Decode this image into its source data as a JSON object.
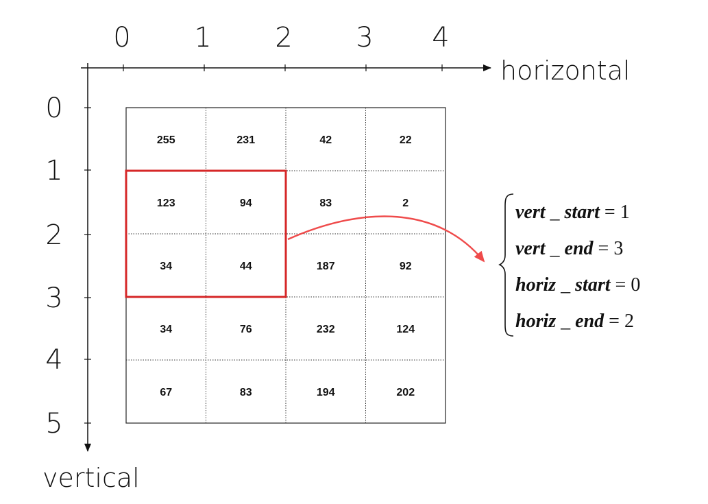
{
  "axes": {
    "horizontal_label": "horizontal",
    "vertical_label": "vertical",
    "horizontal_ticks": [
      "0",
      "1",
      "2",
      "3",
      "4"
    ],
    "vertical_ticks": [
      "0",
      "1",
      "2",
      "3",
      "4",
      "5"
    ]
  },
  "grid": {
    "rows": [
      [
        "255",
        "231",
        "42",
        "22"
      ],
      [
        "123",
        "94",
        "83",
        "2"
      ],
      [
        "34",
        "44",
        "187",
        "92"
      ],
      [
        "34",
        "76",
        "232",
        "124"
      ],
      [
        "67",
        "83",
        "194",
        "202"
      ]
    ]
  },
  "selection": {
    "vert_start": 1,
    "vert_end": 3,
    "horiz_start": 0,
    "horiz_end": 2,
    "color": "#d62728"
  },
  "arrow_color": "#ef4b4b",
  "equations": [
    {
      "var": "vert",
      "suffix": "start",
      "value": "1"
    },
    {
      "var": "vert",
      "suffix": "end",
      "value": "3"
    },
    {
      "var": "horiz",
      "suffix": "start",
      "value": "0"
    },
    {
      "var": "horiz",
      "suffix": "end",
      "value": "2"
    }
  ]
}
